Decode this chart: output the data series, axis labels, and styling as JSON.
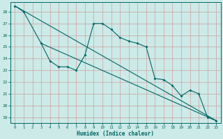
{
  "xlabel": "Humidex (Indice chaleur)",
  "bg_color": "#cceae7",
  "grid_color": "#cc9999",
  "line_color": "#006666",
  "xlim": [
    -0.5,
    23.5
  ],
  "ylim": [
    18.5,
    28.8
  ],
  "yticks": [
    19,
    20,
    21,
    22,
    23,
    24,
    25,
    26,
    27,
    28
  ],
  "xticks": [
    0,
    1,
    2,
    3,
    4,
    5,
    6,
    7,
    8,
    9,
    10,
    11,
    12,
    13,
    14,
    15,
    16,
    17,
    18,
    19,
    20,
    21,
    22,
    23
  ],
  "series1_x": [
    0,
    1,
    3,
    4,
    5,
    6,
    7,
    8,
    9,
    10,
    11,
    12,
    13,
    14,
    15,
    16,
    17,
    18,
    19,
    20,
    21,
    22,
    23
  ],
  "series1_y": [
    28.5,
    28.0,
    25.3,
    23.8,
    23.3,
    23.3,
    23.0,
    24.3,
    27.0,
    27.0,
    26.5,
    25.8,
    25.5,
    25.3,
    25.0,
    22.3,
    22.2,
    21.7,
    20.8,
    21.3,
    21.0,
    19.0,
    18.7
  ],
  "series2_x": [
    0,
    23
  ],
  "series2_y": [
    28.5,
    18.7
  ],
  "series3_x": [
    3,
    23
  ],
  "series3_y": [
    25.3,
    18.7
  ]
}
